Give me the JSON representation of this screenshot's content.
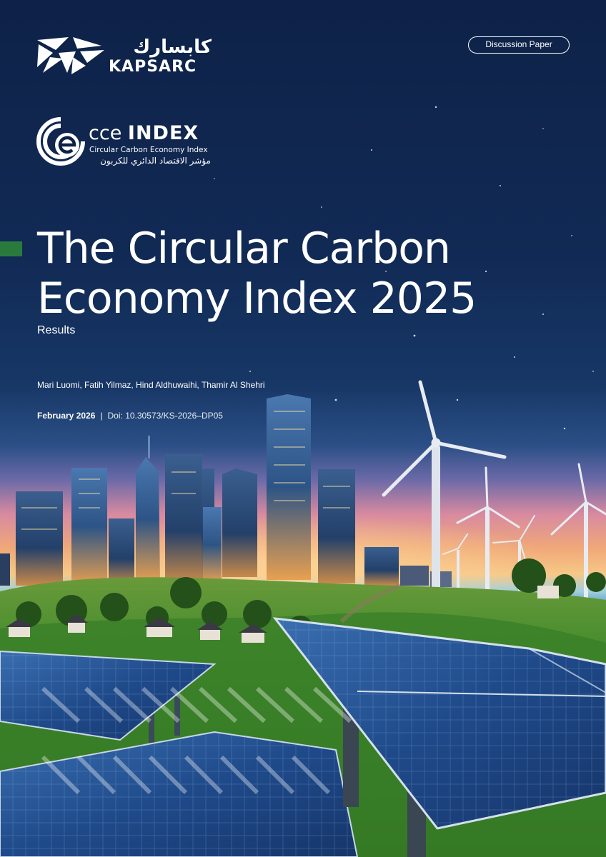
{
  "header": {
    "brand_arabic": "كابسارك",
    "brand_name": "KAPSARC",
    "doc_type_badge": "Discussion Paper"
  },
  "index_logo": {
    "name_prefix": "cce",
    "name_suffix": "INDEX",
    "subtitle": "Circular Carbon Economy Index",
    "arabic_name": "مؤشر الاقتصاد الدائري للكربون"
  },
  "cover": {
    "title_line1": "The Circular Carbon",
    "title_line2": "Economy Index 2025",
    "subtitle": "Results",
    "authors": "Mari Luomi, Fatih Yilmaz, Hind Aldhuwaihi, Thamir Al Shehri",
    "date": "February 2026",
    "separator": "|",
    "doi": "Doi: 10.30573/KS-2026–DP05"
  },
  "colors": {
    "accent_green": "#2a7a3e",
    "night_blue": "#0e2248",
    "text": "#ffffff"
  }
}
